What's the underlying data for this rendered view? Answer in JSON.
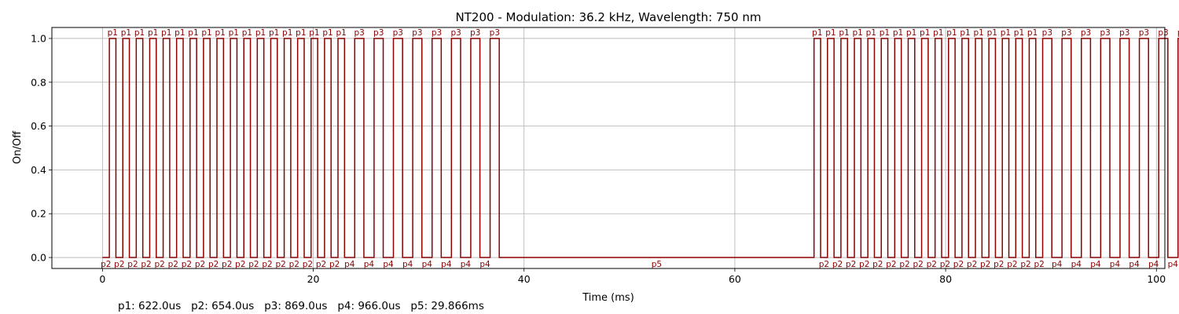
{
  "chart_data": {
    "type": "line",
    "title": "NT200 - Modulation: 36.2 kHz, Wavelength: 750 nm",
    "xlabel": "Time (ms)",
    "ylabel": "On/Off",
    "xlim": [
      -4.8,
      100.8
    ],
    "ylim": [
      -0.05,
      1.05
    ],
    "xticks": [
      "0",
      "20",
      "40",
      "60",
      "80",
      "100"
    ],
    "yticks": [
      "0.0",
      "0.2",
      "0.4",
      "0.6",
      "0.8",
      "1.0"
    ],
    "grid": true,
    "line_color": "#8b0000",
    "pulses_ms": {
      "p1": 0.622,
      "p2": 0.654,
      "p3": 0.869,
      "p4": 0.966,
      "p5": 29.866
    },
    "sequence": [
      "p2",
      "p1",
      "p2",
      "p1",
      "p2",
      "p1",
      "p2",
      "p1",
      "p2",
      "p1",
      "p2",
      "p1",
      "p2",
      "p1",
      "p2",
      "p1",
      "p2",
      "p1",
      "p2",
      "p1",
      "p2",
      "p1",
      "p2",
      "p1",
      "p2",
      "p1",
      "p2",
      "p1",
      "p2",
      "p1",
      "p2",
      "p1",
      "p2",
      "p1",
      "p2",
      "p1",
      "p4",
      "p3",
      "p4",
      "p3",
      "p4",
      "p3",
      "p4",
      "p3",
      "p4",
      "p3",
      "p4",
      "p3",
      "p4",
      "p3",
      "p4",
      "p3",
      "p5",
      "p1",
      "p2",
      "p1",
      "p2",
      "p1",
      "p2",
      "p1",
      "p2",
      "p1",
      "p2",
      "p1",
      "p2",
      "p1",
      "p2",
      "p1",
      "p2",
      "p1",
      "p2",
      "p1",
      "p2",
      "p1",
      "p2",
      "p1",
      "p2",
      "p1",
      "p2",
      "p1",
      "p2",
      "p1",
      "p2",
      "p1",
      "p2",
      "p1",
      "p2",
      "p3",
      "p4",
      "p3",
      "p4",
      "p3",
      "p4",
      "p3",
      "p4",
      "p3",
      "p4",
      "p3",
      "p4",
      "p3",
      "p4",
      "p3"
    ],
    "legend_text": "p1: 622.0us   p2: 654.0us   p3: 869.0us   p4: 966.0us   p5: 29.866ms"
  }
}
